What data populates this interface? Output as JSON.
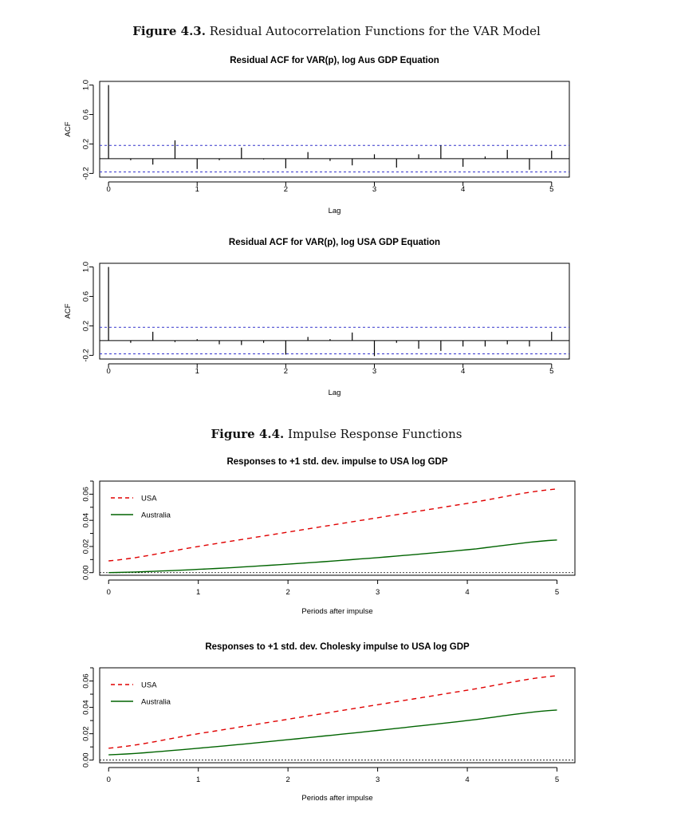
{
  "figure_43": {
    "number": "Figure 4.3.",
    "title": "Residual Autocorrelation Functions for the VAR Model"
  },
  "figure_44": {
    "number": "Figure 4.4.",
    "title": "Impulse Response Functions"
  },
  "colors": {
    "usa": "#e00000",
    "australia": "#006400",
    "confidence": "#3333cc",
    "axis": "#000000"
  },
  "chart_data": [
    {
      "type": "bar",
      "title": "Residual ACF for VAR(p), log Aus GDP Equation",
      "xlabel": "Lag",
      "ylabel": "ACF",
      "x": [
        0,
        0.25,
        0.5,
        0.75,
        1,
        1.25,
        1.5,
        1.75,
        2,
        2.25,
        2.5,
        2.75,
        3,
        3.25,
        3.5,
        3.75,
        4,
        4.25,
        4.5,
        4.75,
        5
      ],
      "values": [
        1.0,
        -0.02,
        -0.08,
        0.25,
        -0.14,
        -0.02,
        0.15,
        -0.01,
        -0.13,
        0.09,
        -0.03,
        -0.09,
        0.06,
        -0.12,
        0.06,
        0.18,
        -0.11,
        0.03,
        0.12,
        -0.15,
        0.11
      ],
      "confidence_band": 0.18,
      "xlim": [
        -0.1,
        5.2
      ],
      "ylim": [
        -0.25,
        1.05
      ],
      "xticks": [
        "0",
        "1",
        "2",
        "3",
        "4",
        "5"
      ],
      "yticks": [
        "-0.2",
        "0.2",
        "0.6",
        "1.0"
      ]
    },
    {
      "type": "bar",
      "title": "Residual ACF for VAR(p), log USA GDP Equation",
      "xlabel": "Lag",
      "ylabel": "ACF",
      "x": [
        0,
        0.25,
        0.5,
        0.75,
        1,
        1.25,
        1.5,
        1.75,
        2,
        2.25,
        2.5,
        2.75,
        3,
        3.25,
        3.5,
        3.75,
        4,
        4.25,
        4.5,
        4.75,
        5
      ],
      "values": [
        1.0,
        -0.03,
        0.12,
        -0.02,
        0.02,
        -0.05,
        -0.06,
        -0.03,
        -0.19,
        0.05,
        0.02,
        0.11,
        -0.21,
        -0.03,
        -0.11,
        -0.14,
        -0.08,
        -0.08,
        -0.05,
        -0.08,
        0.12
      ],
      "confidence_band": 0.18,
      "xlim": [
        -0.1,
        5.2
      ],
      "ylim": [
        -0.25,
        1.05
      ],
      "xticks": [
        "0",
        "1",
        "2",
        "3",
        "4",
        "5"
      ],
      "yticks": [
        "-0.2",
        "0.2",
        "0.6",
        "1.0"
      ]
    },
    {
      "type": "line",
      "title": "Responses to +1 std. dev. impulse to USA log GDP",
      "xlabel": "Periods after impulse",
      "ylabel": "",
      "x": [
        0,
        1,
        2,
        3,
        4,
        5
      ],
      "series": [
        {
          "name": "USA",
          "values": [
            0.009,
            0.02,
            0.031,
            0.042,
            0.053,
            0.064
          ],
          "style": "dashed"
        },
        {
          "name": "Australia",
          "values": [
            0.0,
            0.0025,
            0.0065,
            0.0115,
            0.0175,
            0.025
          ],
          "style": "solid"
        }
      ],
      "legend": "top-left",
      "xlim": [
        -0.1,
        5.2
      ],
      "ylim": [
        -0.002,
        0.07
      ],
      "xticks": [
        "0",
        "1",
        "2",
        "3",
        "4",
        "5"
      ],
      "yticks": [
        "0.00",
        "0.02",
        "0.04",
        "0.06"
      ],
      "y_extra_ticks": [
        0.01,
        0.03,
        0.05,
        0.07
      ]
    },
    {
      "type": "line",
      "title": "Responses to +1 std. dev. Cholesky impulse to USA log GDP",
      "xlabel": "Periods after impulse",
      "ylabel": "",
      "x": [
        0,
        1,
        2,
        3,
        4,
        5
      ],
      "series": [
        {
          "name": "USA",
          "values": [
            0.009,
            0.02,
            0.031,
            0.042,
            0.053,
            0.064
          ],
          "style": "dashed"
        },
        {
          "name": "Australia",
          "values": [
            0.004,
            0.009,
            0.0155,
            0.0225,
            0.03,
            0.038
          ],
          "style": "solid"
        }
      ],
      "legend": "top-left",
      "xlim": [
        -0.1,
        5.2
      ],
      "ylim": [
        -0.002,
        0.07
      ],
      "xticks": [
        "0",
        "1",
        "2",
        "3",
        "4",
        "5"
      ],
      "yticks": [
        "0.00",
        "0.02",
        "0.04",
        "0.06"
      ],
      "y_extra_ticks": [
        0.01,
        0.03,
        0.05,
        0.07
      ]
    }
  ]
}
